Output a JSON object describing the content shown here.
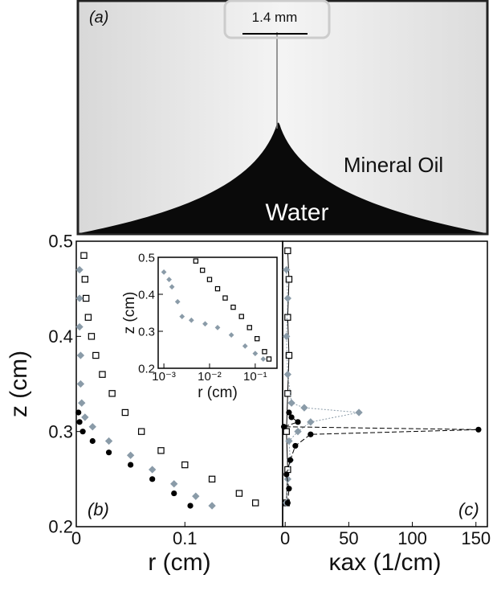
{
  "photo": {
    "label": "(a)",
    "scale": "1.4 mm",
    "upper": "Mineral Oil",
    "lower": "Water"
  },
  "chart_data": [
    {
      "type": "scatter",
      "panel": "(b)",
      "xlabel": "r (cm)",
      "ylabel": "z (cm)",
      "xlim": [
        0,
        0.19
      ],
      "ylim": [
        0.2,
        0.5
      ],
      "xticks": [
        0,
        0.1
      ],
      "yticks": [
        0.2,
        0.3,
        0.4,
        0.5
      ],
      "series": [
        {
          "marker": "square",
          "color": "#000000",
          "x": [
            0.007,
            0.008,
            0.009,
            0.011,
            0.014,
            0.018,
            0.024,
            0.033,
            0.045,
            0.06,
            0.078,
            0.1,
            0.125,
            0.15,
            0.165
          ],
          "y": [
            0.485,
            0.46,
            0.44,
            0.42,
            0.4,
            0.38,
            0.36,
            0.34,
            0.32,
            0.3,
            0.28,
            0.265,
            0.25,
            0.235,
            0.225
          ]
        },
        {
          "marker": "diamond",
          "color": "#8a9ba8",
          "x": [
            0.003,
            0.003,
            0.003,
            0.004,
            0.004,
            0.005,
            0.008,
            0.015,
            0.03,
            0.05,
            0.07,
            0.09,
            0.11,
            0.125
          ],
          "y": [
            0.47,
            0.44,
            0.41,
            0.38,
            0.35,
            0.33,
            0.315,
            0.305,
            0.29,
            0.275,
            0.26,
            0.245,
            0.232,
            0.222
          ]
        },
        {
          "marker": "circle",
          "color": "#000000",
          "x": [
            0.002,
            0.003,
            0.006,
            0.015,
            0.03,
            0.05,
            0.07,
            0.09,
            0.105
          ],
          "y": [
            0.32,
            0.31,
            0.3,
            0.29,
            0.278,
            0.265,
            0.25,
            0.235,
            0.222
          ]
        }
      ]
    },
    {
      "type": "scatter",
      "xscale": "log",
      "xlabel": "r (cm)",
      "ylabel": "z (cm)",
      "xlim": [
        0.00075,
        0.3
      ],
      "ylim": [
        0.2,
        0.5
      ],
      "xticks": [
        {
          "value": 0.001,
          "label": "10⁻³"
        },
        {
          "value": 0.01,
          "label": "10⁻²"
        },
        {
          "value": 0.1,
          "label": "10⁻¹"
        }
      ],
      "yticks": [
        0.2,
        0.3,
        0.4,
        0.5
      ],
      "series": [
        {
          "marker": "square",
          "color": "#000000",
          "x": [
            0.005,
            0.007,
            0.01,
            0.015,
            0.022,
            0.033,
            0.05,
            0.075,
            0.11,
            0.16,
            0.2
          ],
          "y": [
            0.49,
            0.465,
            0.44,
            0.415,
            0.39,
            0.365,
            0.34,
            0.31,
            0.28,
            0.245,
            0.225
          ]
        },
        {
          "marker": "diamond",
          "color": "#8a9ba8",
          "x": [
            0.001,
            0.0013,
            0.0015,
            0.002,
            0.0025,
            0.004,
            0.008,
            0.015,
            0.03,
            0.06,
            0.1,
            0.15
          ],
          "y": [
            0.46,
            0.44,
            0.42,
            0.38,
            0.34,
            0.33,
            0.32,
            0.31,
            0.29,
            0.26,
            0.24,
            0.225
          ]
        }
      ]
    },
    {
      "type": "scatter",
      "panel": "(c)",
      "xlabel": "κax (1/cm)",
      "xlim": [
        -2,
        159
      ],
      "ylim": [
        0.2,
        0.5
      ],
      "xticks": [
        0,
        50,
        100,
        150
      ],
      "yticks": [
        0.2,
        0.3,
        0.4,
        0.5
      ],
      "series": [
        {
          "marker": "square",
          "color": "#000000",
          "line": "solid",
          "x": [
            1,
            2,
            1,
            2,
            3,
            2,
            3,
            2
          ],
          "y": [
            0.225,
            0.26,
            0.3,
            0.34,
            0.38,
            0.42,
            0.46,
            0.49
          ]
        },
        {
          "marker": "diamond",
          "color": "#8a9ba8",
          "line": "dotted",
          "x": [
            1,
            2,
            4,
            3,
            10,
            20,
            58,
            15,
            5,
            2,
            1,
            2,
            1
          ],
          "y": [
            0.225,
            0.25,
            0.27,
            0.29,
            0.3,
            0.31,
            0.32,
            0.325,
            0.33,
            0.36,
            0.4,
            0.44,
            0.47
          ]
        },
        {
          "marker": "circle",
          "color": "#000000",
          "line": "dashed",
          "x": [
            2,
            3,
            1,
            4,
            8,
            20,
            152,
            -1,
            10,
            5,
            3
          ],
          "y": [
            0.225,
            0.24,
            0.255,
            0.27,
            0.285,
            0.297,
            0.302,
            0.305,
            0.31,
            0.315,
            0.32
          ]
        }
      ]
    }
  ]
}
